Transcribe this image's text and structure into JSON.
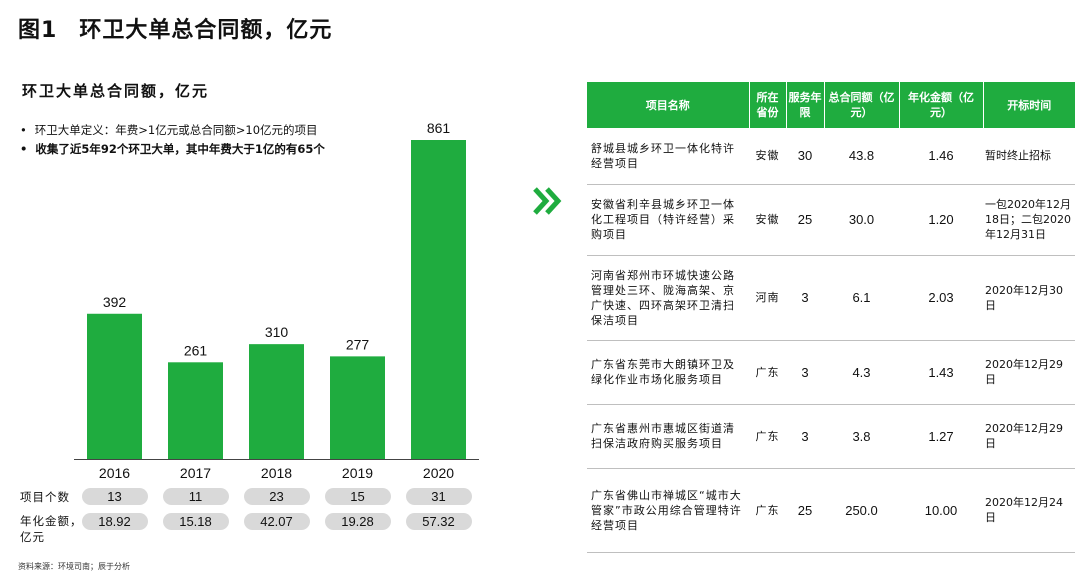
{
  "page": {
    "title_num": "图1",
    "title_text": "环卫大单总合同额，亿元",
    "subtitle": "环卫大单总合同额，亿元",
    "bullet1": "环卫大单定义：年费>1亿元或总合同额>10亿元的项目",
    "bullet2": "收集了近5年92个环卫大单，其中年费大于1亿的有65个",
    "row_label_count": "项目个数",
    "row_label_amount_1": "年化金额，",
    "row_label_amount_2": "亿元",
    "source": "资料来源：环境司南；辰于分析"
  },
  "colors": {
    "bar": "#1fac3f",
    "pill": "#d9d9d9",
    "header": "#1fac3f"
  },
  "chart_data": {
    "type": "bar",
    "categories": [
      "2016",
      "2017",
      "2018",
      "2019",
      "2020"
    ],
    "values": [
      392,
      261,
      310,
      277,
      861
    ],
    "title": "环卫大单总合同额，亿元",
    "xlabel": "",
    "ylabel": "",
    "ylim": [
      0,
      861
    ],
    "project_counts": [
      "13",
      "11",
      "23",
      "15",
      "31"
    ],
    "annualized_amounts": [
      "18.92",
      "15.18",
      "42.07",
      "19.28",
      "57.32"
    ]
  },
  "table": {
    "headers": [
      "项目名称",
      "所在省份",
      "服务年限",
      "总合同额（亿元）",
      "年化金额（亿元）",
      "开标时间"
    ],
    "rows": [
      {
        "name": "舒城县城乡环卫一体化特许经营项目",
        "province": "安徽",
        "years": "30",
        "total": "43.8",
        "annual": "1.46",
        "time": "暂时终止招标"
      },
      {
        "name": "安徽省利辛县城乡环卫一体化工程项目（特许经营）采购项目",
        "province": "安徽",
        "years": "25",
        "total": "30.0",
        "annual": "1.20",
        "time": "一包2020年12月18日；二包2020年12月31日"
      },
      {
        "name": "河南省郑州市环城快速公路管理处三环、陇海高架、京广快速、四环高架环卫清扫保洁项目",
        "province": "河南",
        "years": "3",
        "total": "6.1",
        "annual": "2.03",
        "time": "2020年12月30日"
      },
      {
        "name": "广东省东莞市大朗镇环卫及绿化作业市场化服务项目",
        "province": "广东",
        "years": "3",
        "total": "4.3",
        "annual": "1.43",
        "time": "2020年12月29日"
      },
      {
        "name": "广东省惠州市惠城区街道清扫保洁政府购买服务项目",
        "province": "广东",
        "years": "3",
        "total": "3.8",
        "annual": "1.27",
        "time": "2020年12月29日"
      },
      {
        "name": "广东省佛山市禅城区“城市大管家”市政公用综合管理特许经营项目",
        "province": "广东",
        "years": "25",
        "total": "250.0",
        "annual": "10.00",
        "time": "2020年12月24日"
      }
    ]
  }
}
